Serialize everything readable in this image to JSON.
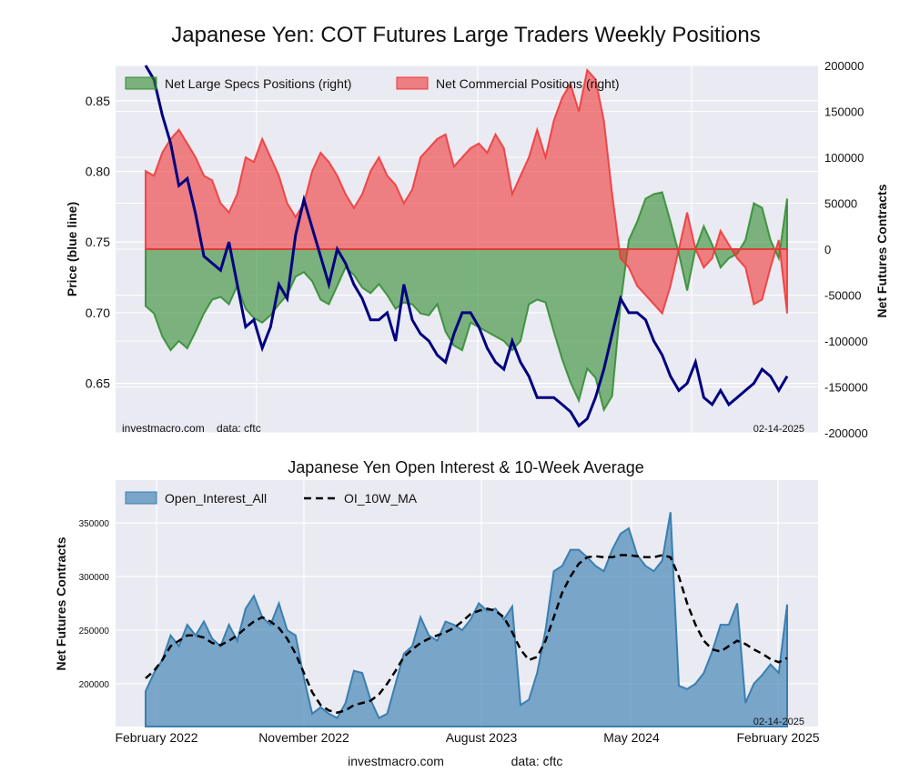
{
  "title": "Japanese Yen: COT Futures Large Traders Weekly Positions",
  "footer": {
    "site": "investmacro.com",
    "source": "data: cftc"
  },
  "chart_data": [
    {
      "type": "area",
      "watermark": "investmacro.com    data: cftc",
      "date_label": "02-14-2025",
      "ylabel_left": "Price (blue line)",
      "ylabel_right": "Net Futures Contracts",
      "ylim_left": [
        0.615,
        0.875
      ],
      "ylim_right": [
        -200000,
        200000
      ],
      "yticks_left": [
        "0.65",
        "0.70",
        "0.75",
        "0.80",
        "0.85"
      ],
      "yticks_right": [
        "200000",
        "150000",
        "100000",
        "50000",
        "0",
        "-50000",
        "-100000",
        "-150000",
        "-200000"
      ],
      "grid": true,
      "legend_position": "top",
      "colors": {
        "specs": "#2e8b2e",
        "commercial": "#ef3535",
        "price": "#000080"
      },
      "series": [
        {
          "name": "Net Large Specs Positions (right)",
          "axis": "right",
          "x": [
            0,
            14,
            28,
            42,
            56,
            70,
            84,
            98,
            112,
            126,
            140,
            154,
            168,
            182,
            196,
            210,
            224,
            238,
            252,
            266,
            280,
            294,
            308,
            322,
            336,
            350,
            364,
            378,
            392,
            406,
            420,
            434,
            448,
            462,
            476,
            490,
            504,
            518,
            532,
            546,
            560,
            574,
            588,
            602,
            616,
            630,
            644,
            658,
            672,
            686,
            700,
            714,
            728,
            742,
            756,
            770,
            784,
            798,
            812,
            826,
            840,
            854,
            868,
            882,
            896,
            910,
            924,
            938,
            952,
            966,
            980,
            994,
            1008,
            1022,
            1036,
            1050,
            1064,
            1078
          ],
          "values": [
            -62000,
            -70000,
            -95000,
            -110000,
            -100000,
            -108000,
            -90000,
            -70000,
            -55000,
            -52000,
            -60000,
            -40000,
            -65000,
            -75000,
            -80000,
            -72000,
            -60000,
            -50000,
            -30000,
            -25000,
            -35000,
            -55000,
            -60000,
            -40000,
            -20000,
            -28000,
            -42000,
            -48000,
            -38000,
            -50000,
            -65000,
            -58000,
            -60000,
            -70000,
            -72000,
            -60000,
            -90000,
            -105000,
            -110000,
            -80000,
            -85000,
            -90000,
            -95000,
            -100000,
            -110000,
            -100000,
            -60000,
            -55000,
            -58000,
            -90000,
            -120000,
            -145000,
            -165000,
            -130000,
            -140000,
            -175000,
            -160000,
            -60000,
            10000,
            30000,
            55000,
            60000,
            62000,
            30000,
            -5000,
            -45000,
            0,
            25000,
            5000,
            -20000,
            -10000,
            -5000,
            10000,
            50000,
            45000,
            10000,
            -10000,
            55000
          ]
        },
        {
          "name": "Net Commercial Positions (right)",
          "axis": "right",
          "x": [
            0,
            14,
            28,
            42,
            56,
            70,
            84,
            98,
            112,
            126,
            140,
            154,
            168,
            182,
            196,
            210,
            224,
            238,
            252,
            266,
            280,
            294,
            308,
            322,
            336,
            350,
            364,
            378,
            392,
            406,
            420,
            434,
            448,
            462,
            476,
            490,
            504,
            518,
            532,
            546,
            560,
            574,
            588,
            602,
            616,
            630,
            644,
            658,
            672,
            686,
            700,
            714,
            728,
            742,
            756,
            770,
            784,
            798,
            812,
            826,
            840,
            854,
            868,
            882,
            896,
            910,
            924,
            938,
            952,
            966,
            980,
            994,
            1008,
            1022,
            1036,
            1050,
            1064,
            1078
          ],
          "values": [
            85000,
            80000,
            105000,
            120000,
            130000,
            115000,
            100000,
            80000,
            75000,
            50000,
            40000,
            60000,
            100000,
            95000,
            120000,
            100000,
            80000,
            50000,
            35000,
            50000,
            85000,
            105000,
            95000,
            80000,
            60000,
            45000,
            60000,
            85000,
            100000,
            80000,
            70000,
            50000,
            65000,
            100000,
            110000,
            120000,
            125000,
            90000,
            100000,
            110000,
            115000,
            105000,
            125000,
            110000,
            60000,
            80000,
            100000,
            130000,
            100000,
            140000,
            165000,
            180000,
            150000,
            195000,
            185000,
            140000,
            60000,
            -10000,
            -20000,
            -40000,
            -50000,
            -60000,
            -70000,
            -40000,
            0,
            40000,
            0,
            -20000,
            -10000,
            20000,
            5000,
            -10000,
            -20000,
            -60000,
            -55000,
            -20000,
            10000,
            -70000
          ]
        },
        {
          "name": "Price",
          "axis": "left",
          "x": [
            0,
            14,
            28,
            42,
            56,
            70,
            84,
            98,
            112,
            126,
            140,
            154,
            168,
            182,
            196,
            210,
            224,
            238,
            252,
            266,
            280,
            294,
            308,
            322,
            336,
            350,
            364,
            378,
            392,
            406,
            420,
            434,
            448,
            462,
            476,
            490,
            504,
            518,
            532,
            546,
            560,
            574,
            588,
            602,
            616,
            630,
            644,
            658,
            672,
            686,
            700,
            714,
            728,
            742,
            756,
            770,
            784,
            798,
            812,
            826,
            840,
            854,
            868,
            882,
            896,
            910,
            924,
            938,
            952,
            966,
            980,
            994,
            1008,
            1022,
            1036,
            1050,
            1064,
            1078
          ],
          "values": [
            0.875,
            0.865,
            0.84,
            0.82,
            0.79,
            0.795,
            0.77,
            0.74,
            0.735,
            0.73,
            0.75,
            0.72,
            0.69,
            0.695,
            0.675,
            0.69,
            0.72,
            0.71,
            0.755,
            0.78,
            0.76,
            0.74,
            0.72,
            0.745,
            0.735,
            0.72,
            0.71,
            0.695,
            0.695,
            0.7,
            0.68,
            0.72,
            0.695,
            0.685,
            0.68,
            0.67,
            0.665,
            0.685,
            0.7,
            0.7,
            0.69,
            0.675,
            0.665,
            0.66,
            0.68,
            0.665,
            0.655,
            0.64,
            0.64,
            0.64,
            0.635,
            0.63,
            0.62,
            0.625,
            0.64,
            0.66,
            0.685,
            0.71,
            0.7,
            0.7,
            0.695,
            0.68,
            0.67,
            0.655,
            0.645,
            0.65,
            0.665,
            0.64,
            0.635,
            0.645,
            0.635,
            0.64,
            0.645,
            0.65,
            0.66,
            0.655,
            0.645,
            0.655
          ]
        }
      ]
    },
    {
      "type": "area",
      "title": "Japanese Yen Open Interest & 10-Week Average",
      "date_label": "02-14-2025",
      "ylabel": "Net Futures Contracts",
      "ylim": [
        160000,
        390000
      ],
      "yticks": [
        "200000",
        "250000",
        "300000",
        "350000"
      ],
      "categories": [
        "February 2022",
        "November 2022",
        "August 2023",
        "May 2024",
        "February 2025"
      ],
      "grid": true,
      "legend_position": "top-left",
      "colors": {
        "oi": "#3a7fb0",
        "ma": "#000000"
      },
      "series": [
        {
          "name": "Open_Interest_All",
          "x": [
            0,
            14,
            28,
            42,
            56,
            70,
            84,
            98,
            112,
            126,
            140,
            154,
            168,
            182,
            196,
            210,
            224,
            238,
            252,
            266,
            280,
            294,
            308,
            322,
            336,
            350,
            364,
            378,
            392,
            406,
            420,
            434,
            448,
            462,
            476,
            490,
            504,
            518,
            532,
            546,
            560,
            574,
            588,
            602,
            616,
            630,
            644,
            658,
            672,
            686,
            700,
            714,
            728,
            742,
            756,
            770,
            784,
            798,
            812,
            826,
            840,
            854,
            868,
            882,
            896,
            910,
            924,
            938,
            952,
            966,
            980,
            994,
            1008,
            1022,
            1036,
            1050,
            1064,
            1078
          ],
          "values": [
            193000,
            210000,
            222000,
            245000,
            235000,
            255000,
            245000,
            258000,
            242000,
            235000,
            255000,
            240000,
            270000,
            282000,
            262000,
            255000,
            275000,
            250000,
            245000,
            205000,
            172000,
            178000,
            172000,
            168000,
            182000,
            212000,
            210000,
            185000,
            168000,
            172000,
            200000,
            228000,
            235000,
            262000,
            245000,
            240000,
            258000,
            255000,
            250000,
            260000,
            275000,
            268000,
            270000,
            260000,
            272000,
            180000,
            185000,
            210000,
            250000,
            305000,
            310000,
            325000,
            325000,
            318000,
            310000,
            305000,
            325000,
            340000,
            345000,
            320000,
            310000,
            305000,
            315000,
            360000,
            198000,
            195000,
            200000,
            210000,
            230000,
            255000,
            255000,
            275000,
            182000,
            200000,
            208000,
            218000,
            210000,
            274000
          ]
        },
        {
          "name": "OI_10W_MA",
          "x": [
            0,
            14,
            28,
            42,
            56,
            70,
            84,
            98,
            112,
            126,
            140,
            154,
            168,
            182,
            196,
            210,
            224,
            238,
            252,
            266,
            280,
            294,
            308,
            322,
            336,
            350,
            364,
            378,
            392,
            406,
            420,
            434,
            448,
            462,
            476,
            490,
            504,
            518,
            532,
            546,
            560,
            574,
            588,
            602,
            616,
            630,
            644,
            658,
            672,
            686,
            700,
            714,
            728,
            742,
            756,
            770,
            784,
            798,
            812,
            826,
            840,
            854,
            868,
            882,
            896,
            910,
            924,
            938,
            952,
            966,
            980,
            994,
            1008,
            1022,
            1036,
            1050,
            1064,
            1078
          ],
          "values": [
            205000,
            212000,
            222000,
            235000,
            240000,
            245000,
            245000,
            243000,
            238000,
            236000,
            240000,
            245000,
            252000,
            258000,
            262000,
            258000,
            252000,
            242000,
            228000,
            210000,
            192000,
            180000,
            175000,
            173000,
            175000,
            180000,
            182000,
            184000,
            190000,
            200000,
            212000,
            225000,
            232000,
            238000,
            242000,
            245000,
            248000,
            252000,
            258000,
            265000,
            268000,
            270000,
            268000,
            262000,
            248000,
            232000,
            222000,
            225000,
            240000,
            262000,
            285000,
            300000,
            312000,
            318000,
            319000,
            318000,
            318000,
            320000,
            320000,
            319000,
            318000,
            318000,
            320000,
            318000,
            300000,
            275000,
            255000,
            240000,
            232000,
            230000,
            235000,
            240000,
            237000,
            232000,
            228000,
            223000,
            220000,
            224000
          ]
        }
      ]
    }
  ]
}
